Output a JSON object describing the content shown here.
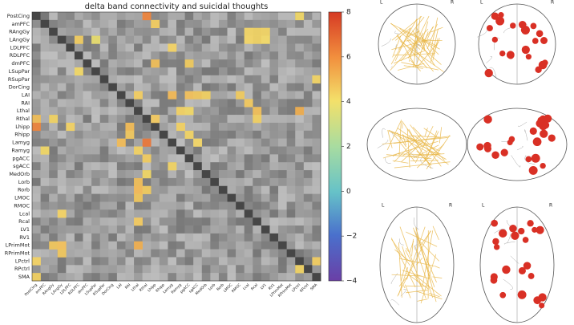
{
  "chart_data": {
    "type": "heatmap",
    "title": "delta band connectivity and suicidal thoughts",
    "categories": [
      "PostCing",
      "amPFC",
      "RAngGy",
      "LAngGy",
      "LDLPFC",
      "RDLPFC",
      "dmPFC",
      "LSupPar",
      "RSupPar",
      "DorCing",
      "LAI",
      "RAI",
      "Lthal",
      "Rthal",
      "Lhipp",
      "Rhipp",
      "Lamyg",
      "Ramyg",
      "pgACC",
      "sgACC",
      "MedOrb",
      "Lorb",
      "Rorb",
      "LMOC",
      "RMOC",
      "Lcal",
      "Rcal",
      "LV1",
      "RV1",
      "LPrimMot",
      "RPrimMot",
      "LPctrl",
      "RPctrl",
      "SMA"
    ],
    "cells": [
      [
        0,
        13,
        6.3
      ],
      [
        0,
        31,
        4.2
      ],
      [
        1,
        14,
        4.5
      ],
      [
        2,
        25,
        4.3
      ],
      [
        2,
        26,
        4.3
      ],
      [
        2,
        27,
        4.3
      ],
      [
        3,
        5,
        4.5
      ],
      [
        3,
        25,
        4.3
      ],
      [
        3,
        26,
        4.3
      ],
      [
        3,
        27,
        4.2
      ],
      [
        3,
        7,
        3.8
      ],
      [
        4,
        16,
        4.4
      ],
      [
        6,
        14,
        4.8
      ],
      [
        6,
        18,
        4.5
      ],
      [
        7,
        5,
        4.2
      ],
      [
        8,
        33,
        4.3
      ],
      [
        10,
        12,
        4.5
      ],
      [
        10,
        16,
        5
      ],
      [
        10,
        18,
        4.8
      ],
      [
        10,
        19,
        4.6
      ],
      [
        10,
        20,
        4.4
      ],
      [
        10,
        24,
        4.5
      ],
      [
        11,
        25,
        4.6
      ],
      [
        12,
        17,
        4.4
      ],
      [
        12,
        18,
        4.2
      ],
      [
        12,
        26,
        4.8
      ],
      [
        12,
        31,
        5.2
      ],
      [
        13,
        0,
        4.8
      ],
      [
        13,
        2,
        4.3
      ],
      [
        13,
        14,
        4.6
      ],
      [
        13,
        26,
        4.4
      ],
      [
        14,
        0,
        6.3
      ],
      [
        14,
        4,
        4.4
      ],
      [
        14,
        11,
        4.9
      ],
      [
        14,
        17,
        4.4
      ],
      [
        15,
        11,
        4.6
      ],
      [
        15,
        18,
        4.3
      ],
      [
        16,
        10,
        4.9
      ],
      [
        16,
        13,
        6.6
      ],
      [
        16,
        19,
        4.3
      ],
      [
        17,
        1,
        4.2
      ],
      [
        17,
        12,
        4.4
      ],
      [
        18,
        13,
        4.5
      ],
      [
        19,
        16,
        4.3
      ],
      [
        20,
        13,
        4.2
      ],
      [
        21,
        12,
        4.8
      ],
      [
        22,
        12,
        5.0
      ],
      [
        22,
        13,
        4.5
      ],
      [
        23,
        12,
        4.6
      ],
      [
        25,
        3,
        4.4
      ],
      [
        26,
        12,
        4.6
      ],
      [
        29,
        2,
        4.6
      ],
      [
        29,
        3,
        4.8
      ],
      [
        29,
        12,
        5.2
      ],
      [
        30,
        3,
        4.6
      ],
      [
        31,
        0,
        4.4
      ],
      [
        31,
        33,
        4.5
      ],
      [
        32,
        31,
        4.3
      ],
      [
        33,
        0,
        4.4
      ]
    ],
    "clim": [
      -4,
      8
    ],
    "cticks": [
      {
        "value": -4,
        "label": "−4"
      },
      {
        "value": -2,
        "label": "−2"
      },
      0,
      2,
      4,
      6,
      8
    ],
    "brain_labels": [
      "L",
      "R"
    ]
  }
}
